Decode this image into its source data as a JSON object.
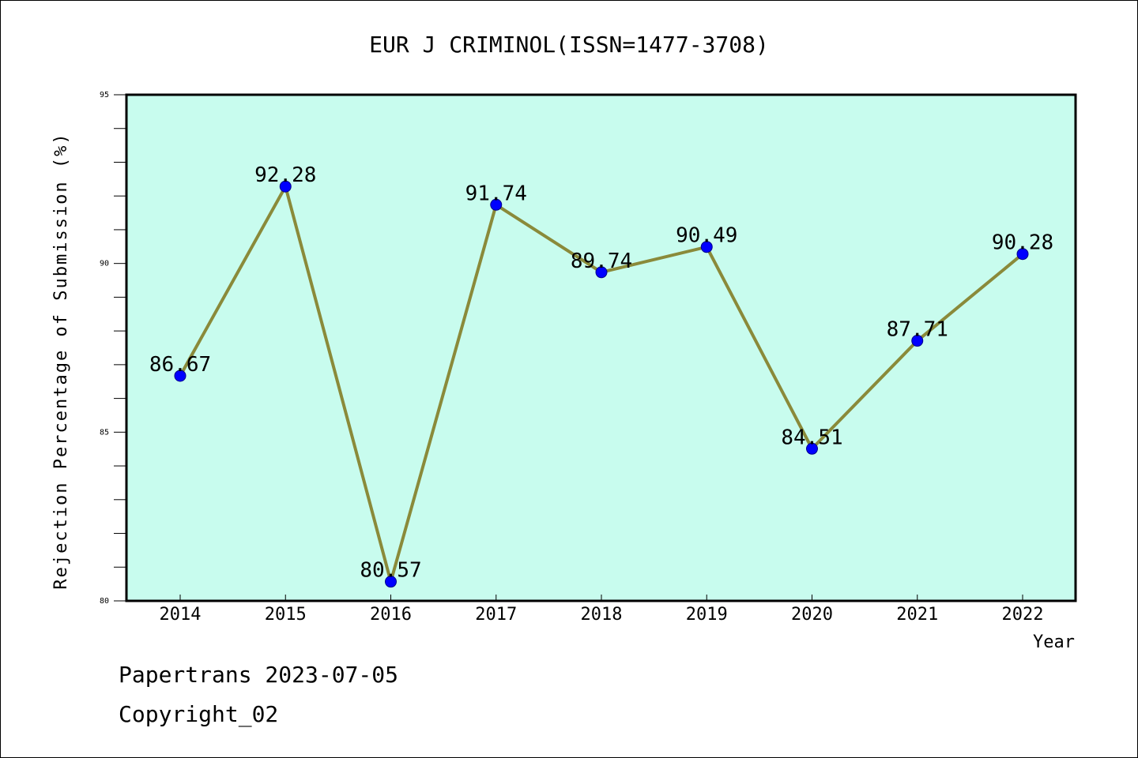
{
  "chart_data": {
    "type": "line",
    "title": "EUR J CRIMINOL(ISSN=1477-3708)",
    "xlabel": "Year",
    "ylabel": "Rejection Percentage of Submission (%)",
    "categories": [
      "2014",
      "2015",
      "2016",
      "2017",
      "2018",
      "2019",
      "2020",
      "2021",
      "2022"
    ],
    "values": [
      86.67,
      92.28,
      80.57,
      91.74,
      89.74,
      90.49,
      84.51,
      87.71,
      90.28
    ],
    "data_labels": [
      "86.67",
      "92.28",
      "80.57",
      "91.74",
      "89.74",
      "90.49",
      "84.51",
      "87.71",
      "90.28"
    ],
    "ylim": [
      80,
      95
    ],
    "yticks": [
      "80",
      "85",
      "90",
      "95"
    ],
    "grid": false,
    "colors": {
      "plot_background": "#c8fcee",
      "line": "#8a8a3a",
      "marker": "#0000ff"
    }
  },
  "footer": {
    "line1": "Papertrans 2023-07-05",
    "line2": "Copyright_02"
  }
}
